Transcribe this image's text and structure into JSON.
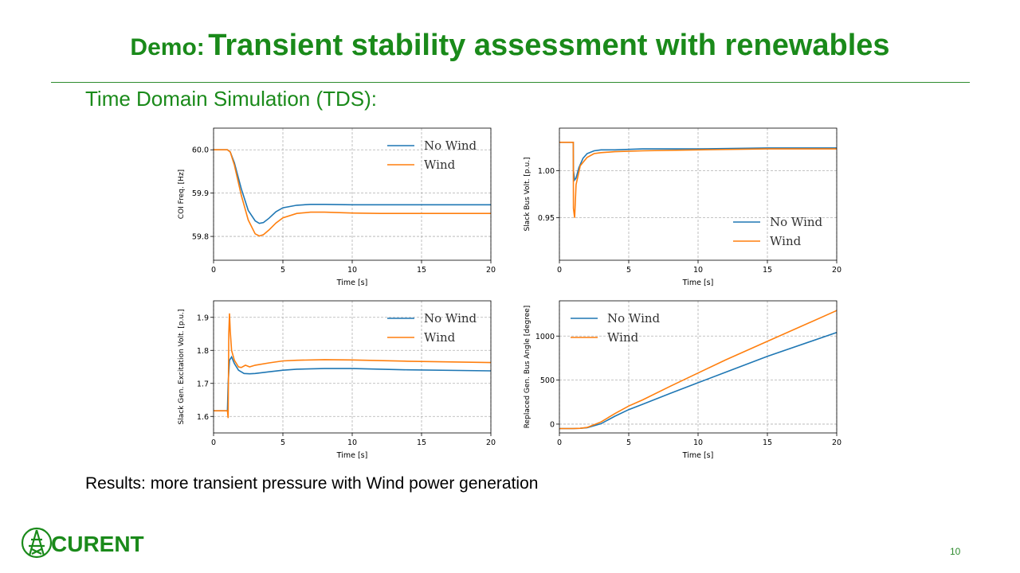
{
  "slide": {
    "title_prefix": "Demo:",
    "title_main": "Transient stability assessment with renewables",
    "subtitle": "Time Domain Simulation (TDS):",
    "results": "Results: more transient pressure with Wind power generation",
    "page_number": "10",
    "logo_text": "CURENT"
  },
  "colors": {
    "accent": "#1a8a1a",
    "no_wind": "#1f77b4",
    "wind": "#ff7f0e"
  },
  "chart_data": [
    {
      "type": "line",
      "ylabel": "COI Freq. [Hz]",
      "xlabel": "Time [s]",
      "xlim": [
        0,
        20
      ],
      "ylim": [
        59.745,
        60.05
      ],
      "xticks": [
        0,
        5,
        10,
        15,
        20
      ],
      "yticks": [
        59.8,
        59.9,
        60.0
      ],
      "ytick_labels": [
        "59.8",
        "59.9",
        "60.0"
      ],
      "legend": "top-right",
      "grid": true,
      "series": [
        {
          "name": "No Wind",
          "x": [
            0,
            1,
            1.2,
            1.5,
            2,
            2.5,
            3,
            3.3,
            3.6,
            4,
            4.5,
            5,
            6,
            7,
            8,
            10,
            12,
            15,
            20
          ],
          "y": [
            60.0,
            60.0,
            59.995,
            59.97,
            59.91,
            59.86,
            59.836,
            59.83,
            59.832,
            59.842,
            59.857,
            59.866,
            59.872,
            59.874,
            59.874,
            59.873,
            59.873,
            59.873,
            59.873
          ]
        },
        {
          "name": "Wind",
          "x": [
            0,
            1,
            1.2,
            1.5,
            2,
            2.5,
            3,
            3.3,
            3.6,
            4,
            4.5,
            5,
            6,
            7,
            8,
            10,
            12,
            15,
            20
          ],
          "y": [
            60.0,
            60.0,
            59.995,
            59.965,
            59.895,
            59.838,
            59.806,
            59.801,
            59.804,
            59.815,
            59.831,
            59.843,
            59.853,
            59.856,
            59.856,
            59.854,
            59.853,
            59.853,
            59.853
          ]
        }
      ]
    },
    {
      "type": "line",
      "ylabel": "Slack Bus Volt. [p.u.]",
      "xlabel": "Time [s]",
      "xlim": [
        0,
        20
      ],
      "ylim": [
        0.905,
        1.045
      ],
      "xticks": [
        0,
        5,
        10,
        15,
        20
      ],
      "yticks": [
        0.95,
        1.0
      ],
      "ytick_labels": [
        "0.95",
        "1.00"
      ],
      "legend": "bottom-right",
      "grid": true,
      "series": [
        {
          "name": "No Wind",
          "x": [
            0,
            1,
            1.01,
            1.1,
            1.2,
            1.4,
            1.7,
            2,
            2.5,
            3,
            4,
            6,
            10,
            15,
            20
          ],
          "y": [
            1.03,
            1.03,
            1.0,
            0.99,
            0.992,
            1.003,
            1.013,
            1.018,
            1.021,
            1.022,
            1.022,
            1.023,
            1.023,
            1.024,
            1.024
          ]
        },
        {
          "name": "Wind",
          "x": [
            0,
            1,
            1.01,
            1.1,
            1.2,
            1.5,
            2,
            2.5,
            3,
            4,
            6,
            10,
            15,
            20
          ],
          "y": [
            1.03,
            1.03,
            0.96,
            0.95,
            0.985,
            1.005,
            1.014,
            1.018,
            1.019,
            1.02,
            1.021,
            1.022,
            1.023,
            1.023
          ]
        }
      ]
    },
    {
      "type": "line",
      "ylabel": "Slack Gen. Excitation Volt. [p.u.]",
      "xlabel": "Time [s]",
      "xlim": [
        0,
        20
      ],
      "ylim": [
        1.55,
        1.95
      ],
      "xticks": [
        0,
        5,
        10,
        15,
        20
      ],
      "yticks": [
        1.6,
        1.7,
        1.8,
        1.9
      ],
      "ytick_labels": [
        "1.6",
        "1.7",
        "1.8",
        "1.9"
      ],
      "legend": "top-right",
      "grid": true,
      "series": [
        {
          "name": "No Wind",
          "x": [
            0,
            1,
            1.05,
            1.15,
            1.3,
            1.5,
            1.8,
            2.2,
            2.6,
            3,
            4,
            5,
            6,
            8,
            10,
            14,
            20
          ],
          "y": [
            1.617,
            1.617,
            1.7,
            1.77,
            1.78,
            1.76,
            1.74,
            1.73,
            1.729,
            1.73,
            1.735,
            1.74,
            1.743,
            1.745,
            1.745,
            1.741,
            1.738
          ]
        },
        {
          "name": "Wind",
          "x": [
            0,
            1,
            1.05,
            1.1,
            1.15,
            1.2,
            1.3,
            1.5,
            1.8,
            2.0,
            2.3,
            2.6,
            3,
            4,
            5,
            6,
            8,
            10,
            14,
            20
          ],
          "y": [
            1.617,
            1.617,
            1.595,
            1.85,
            1.912,
            1.86,
            1.8,
            1.77,
            1.75,
            1.748,
            1.755,
            1.75,
            1.755,
            1.762,
            1.768,
            1.77,
            1.772,
            1.771,
            1.767,
            1.763
          ]
        }
      ]
    },
    {
      "type": "line",
      "ylabel": "Replaced Gen. Bus Angle [degree]",
      "xlabel": "Time [s]",
      "xlim": [
        0,
        20
      ],
      "ylim": [
        -100,
        1400
      ],
      "xticks": [
        0,
        5,
        10,
        15,
        20
      ],
      "yticks": [
        0,
        500,
        1000
      ],
      "ytick_labels": [
        "0",
        "500",
        "1000"
      ],
      "legend": "top-left",
      "grid": true,
      "series": [
        {
          "name": "No Wind",
          "x": [
            0,
            1,
            1.5,
            2,
            3,
            4,
            5,
            6,
            8,
            10,
            12,
            15,
            20
          ],
          "y": [
            -50,
            -50,
            -48,
            -40,
            5,
            90,
            165,
            225,
            350,
            470,
            590,
            770,
            1040
          ]
        },
        {
          "name": "Wind",
          "x": [
            0,
            1,
            1.5,
            2,
            3,
            4,
            5,
            6,
            8,
            10,
            12,
            15,
            20
          ],
          "y": [
            -50,
            -50,
            -48,
            -38,
            25,
            120,
            205,
            275,
            430,
            580,
            730,
            940,
            1290
          ]
        }
      ]
    }
  ]
}
